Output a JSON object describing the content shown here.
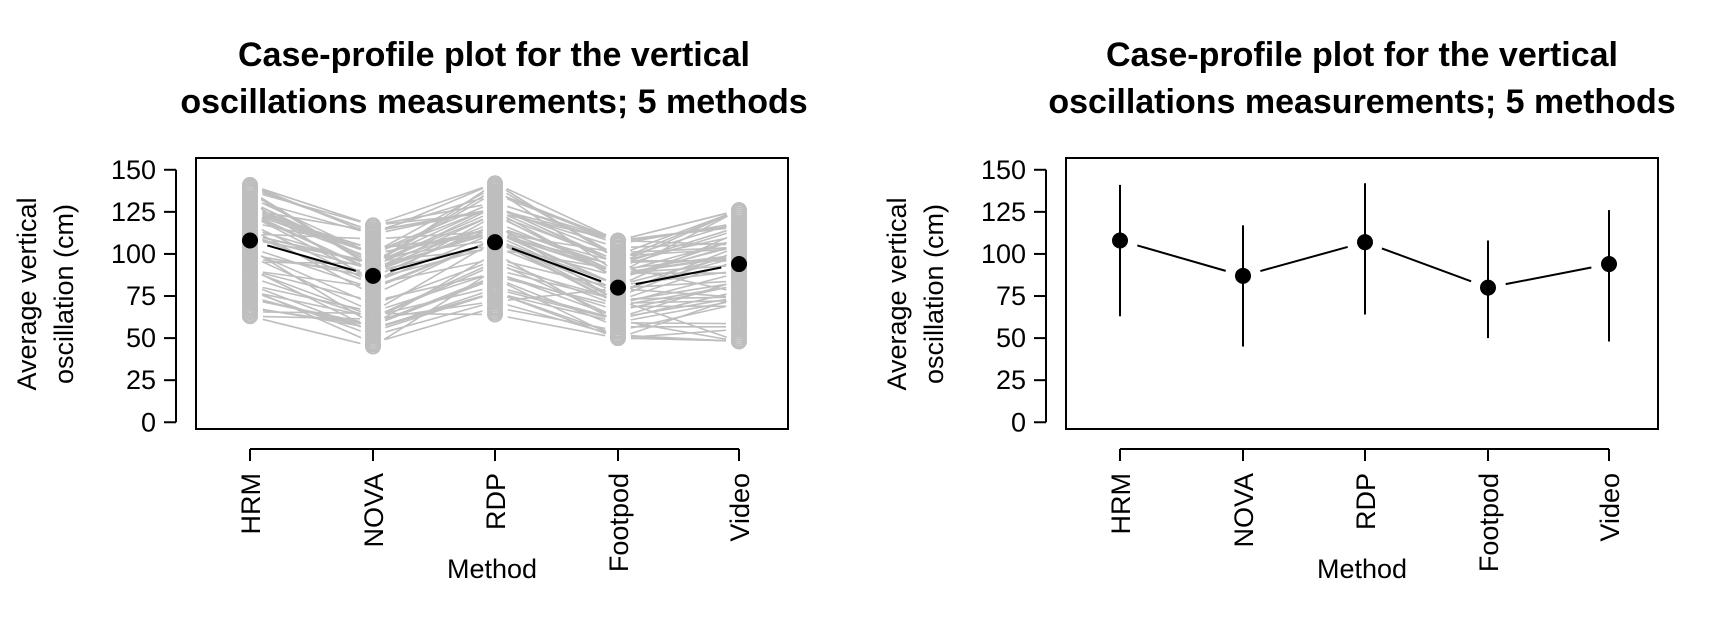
{
  "chart_data": [
    {
      "type": "line",
      "variant": "case-profile",
      "title_lines": [
        "Case-profile plot for the vertical",
        "oscillations measurements; 5 methods"
      ],
      "xlabel": "Method",
      "ylabel_lines": [
        "Average vertical",
        "oscillation (cm)"
      ],
      "categories": [
        "HRM",
        "NOVA",
        "RDP",
        "Footpod",
        "Video"
      ],
      "yticks": [
        0,
        25,
        50,
        75,
        100,
        125,
        150
      ],
      "ylim": [
        -4,
        157
      ],
      "series": [
        {
          "name": "mean",
          "values": [
            108,
            87,
            107,
            80,
            94
          ],
          "color": "#000000"
        }
      ],
      "case_profiles": {
        "color": "#bebebe",
        "ranges": [
          [
            63,
            141
          ],
          [
            45,
            117
          ],
          [
            64,
            142
          ],
          [
            50,
            108
          ],
          [
            48,
            126
          ]
        ],
        "n_cases": 60
      }
    },
    {
      "type": "line",
      "variant": "mean-range",
      "title_lines": [
        "Case-profile plot for the vertical",
        "oscillations measurements; 5 methods"
      ],
      "xlabel": "Method",
      "ylabel_lines": [
        "Average vertical",
        "oscillation (cm)"
      ],
      "categories": [
        "HRM",
        "NOVA",
        "RDP",
        "Footpod",
        "Video"
      ],
      "yticks": [
        0,
        25,
        50,
        75,
        100,
        125,
        150
      ],
      "ylim": [
        -4,
        157
      ],
      "series": [
        {
          "name": "mean",
          "values": [
            108,
            87,
            107,
            80,
            94
          ],
          "color": "#000000"
        }
      ],
      "ranges": [
        [
          63,
          141
        ],
        [
          45,
          117
        ],
        [
          64,
          142
        ],
        [
          50,
          108
        ],
        [
          48,
          126
        ]
      ]
    }
  ]
}
